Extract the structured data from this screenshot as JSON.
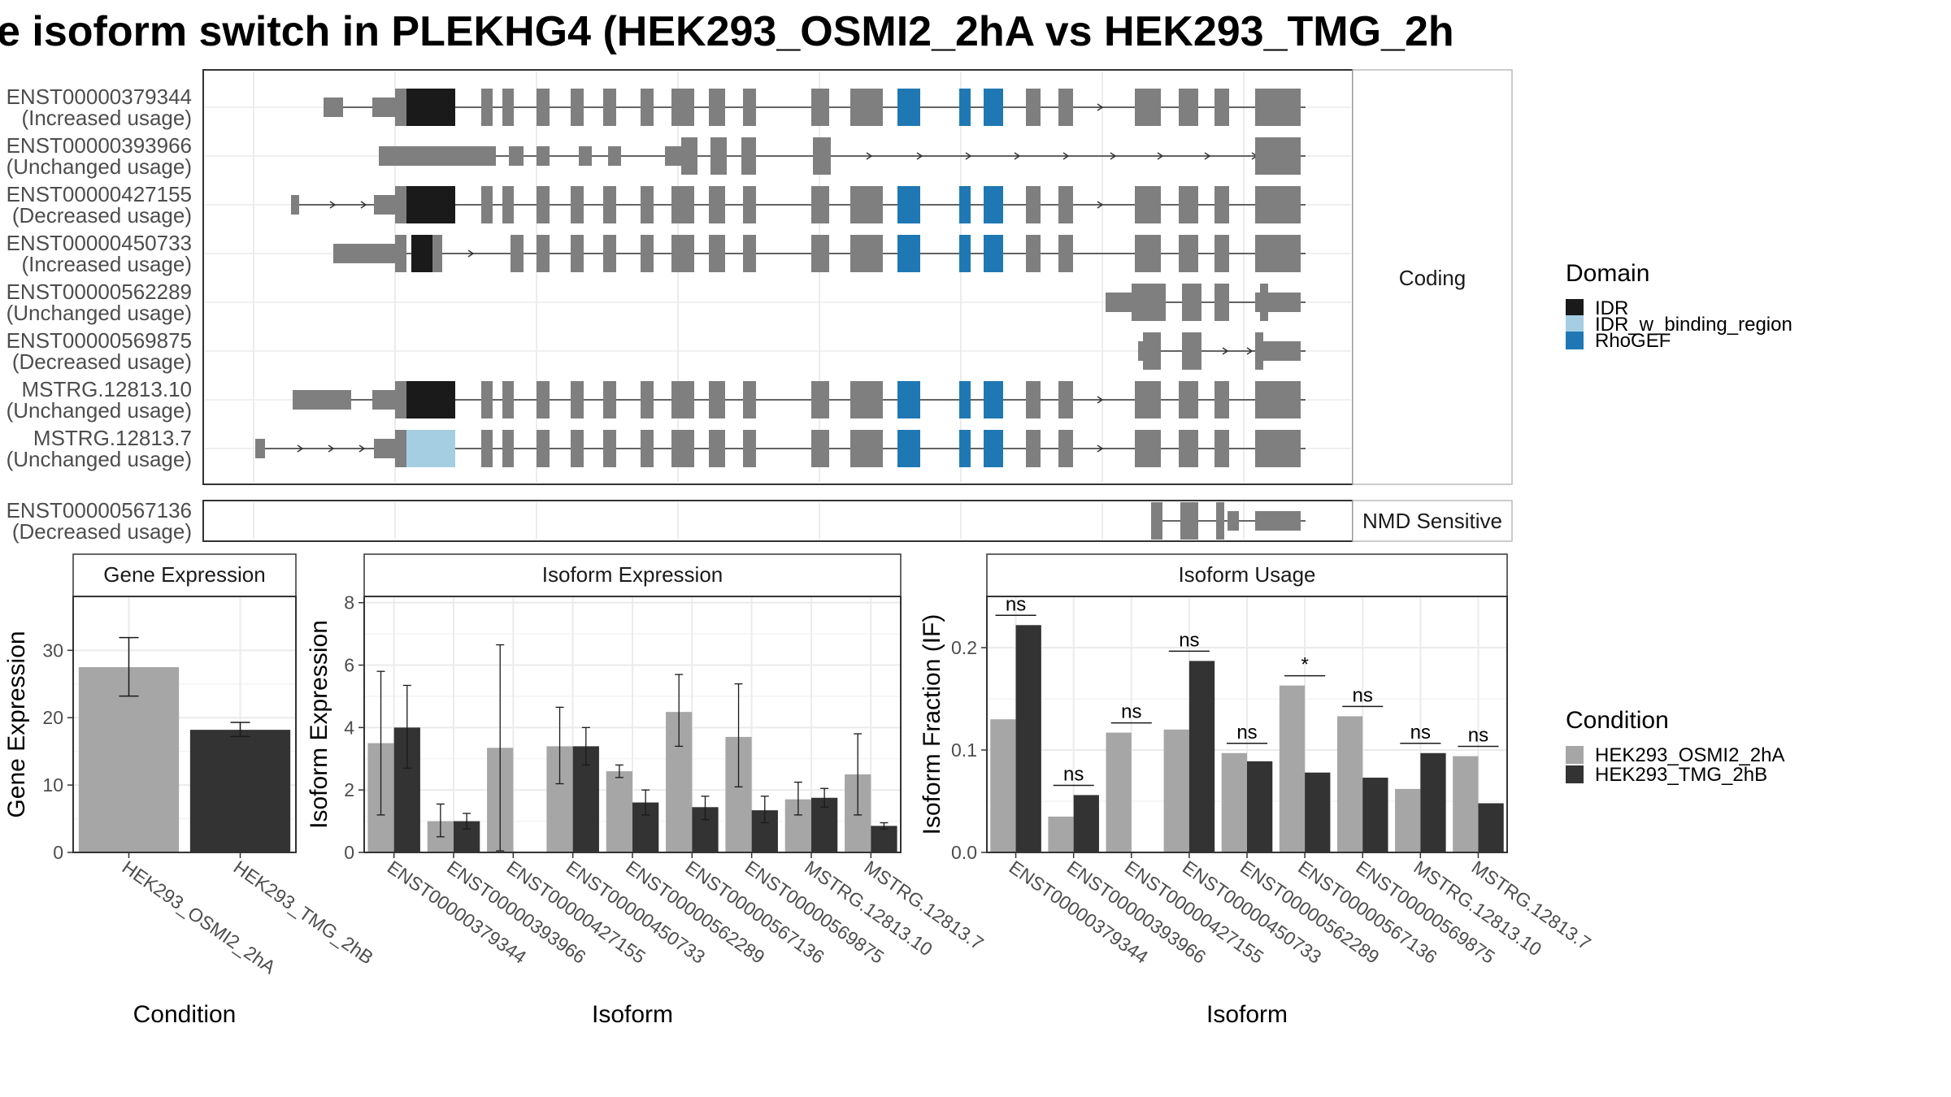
{
  "title": "e isoform switch in PLEKHG4 (HEK293_OSMI2_2hA vs HEK293_TMG_2h",
  "colors": {
    "exon": "#7f7f7f",
    "IDR": "#1a1a1a",
    "IDR_w_binding_region": "#a6cee3",
    "RhoGEF": "#1f78b4",
    "cond_A": "#a6a6a6",
    "cond_B": "#333333"
  },
  "structure": {
    "coding_panel_label": "Coding",
    "nmd_panel_label": "NMD Sensitive",
    "coding_isoforms": [
      {
        "id": "ENST00000379344",
        "usage": "(Increased usage)"
      },
      {
        "id": "ENST00000393966",
        "usage": "(Unchanged usage)"
      },
      {
        "id": "ENST00000427155",
        "usage": "(Decreased usage)"
      },
      {
        "id": "ENST00000450733",
        "usage": "(Increased usage)"
      },
      {
        "id": "ENST00000562289",
        "usage": "(Unchanged usage)"
      },
      {
        "id": "ENST00000569875",
        "usage": "(Decreased usage)"
      },
      {
        "id": "MSTRG.12813.10",
        "usage": "(Unchanged usage)"
      },
      {
        "id": "MSTRG.12813.7",
        "usage": "(Unchanged usage)"
      }
    ],
    "nmd_isoforms": [
      {
        "id": "ENST00000567136",
        "usage": "(Decreased usage)"
      }
    ]
  },
  "legend_domain": {
    "title": "Domain",
    "items": [
      {
        "label": "IDR",
        "color_key": "IDR"
      },
      {
        "label": "IDR_w_binding_region",
        "color_key": "IDR_w_binding_region"
      },
      {
        "label": "RhoGEF",
        "color_key": "RhoGEF"
      }
    ]
  },
  "legend_condition": {
    "title": "Condition",
    "items": [
      {
        "label": "HEK293_OSMI2_2hA",
        "color_key": "cond_A"
      },
      {
        "label": "HEK293_TMG_2hB",
        "color_key": "cond_B"
      }
    ]
  },
  "chart_data": [
    {
      "type": "bar",
      "panel_title": "Gene Expression",
      "xlabel": "Condition",
      "ylabel": "Gene Expression",
      "ylim": [
        0,
        38
      ],
      "yticks": [
        0,
        10,
        20,
        30
      ],
      "categories": [
        "HEK293_OSMI2_2hA",
        "HEK293_TMG_2hB"
      ],
      "values": [
        27.5,
        18.2
      ],
      "error": [
        [
          23.2,
          31.9
        ],
        [
          17.2,
          19.3
        ]
      ]
    },
    {
      "type": "bar",
      "panel_title": "Isoform Expression",
      "xlabel": "Isoform",
      "ylabel": "Isoform Expression",
      "ylim": [
        0,
        8.2
      ],
      "yticks": [
        0,
        2,
        4,
        6,
        8
      ],
      "categories": [
        "ENST00000379344",
        "ENST00000393966",
        "ENST00000427155",
        "ENST00000450733",
        "ENST00000562289",
        "ENST00000567136",
        "ENST00000569875",
        "MSTRG.12813.10",
        "MSTRG.12813.7"
      ],
      "series": [
        {
          "name": "HEK293_OSMI2_2hA",
          "values": [
            3.5,
            1.0,
            3.35,
            3.4,
            2.6,
            4.5,
            3.7,
            1.7,
            2.5
          ],
          "error": [
            [
              1.2,
              5.8
            ],
            [
              0.5,
              1.55
            ],
            [
              0.05,
              6.65
            ],
            [
              2.2,
              4.65
            ],
            [
              2.4,
              2.8
            ],
            [
              3.4,
              5.7
            ],
            [
              2.1,
              5.4
            ],
            [
              1.2,
              2.25
            ],
            [
              1.2,
              3.8
            ]
          ]
        },
        {
          "name": "HEK293_TMG_2hB",
          "values": [
            4.0,
            1.0,
            0.0,
            3.4,
            1.6,
            1.45,
            1.35,
            1.75,
            0.85
          ],
          "error": [
            [
              2.7,
              5.35
            ],
            [
              0.75,
              1.25
            ],
            [
              0.0,
              0.0
            ],
            [
              2.8,
              4.0
            ],
            [
              1.2,
              2.0
            ],
            [
              1.05,
              1.8
            ],
            [
              0.95,
              1.8
            ],
            [
              1.45,
              2.05
            ],
            [
              0.75,
              0.95
            ]
          ]
        }
      ]
    },
    {
      "type": "bar",
      "panel_title": "Isoform Usage",
      "xlabel": "Isoform",
      "ylabel": "Isoform Fraction (IF)",
      "ylim": [
        0,
        0.25
      ],
      "yticks": [
        0.0,
        0.1,
        0.2
      ],
      "ytick_labels": [
        "0.0",
        "0.1",
        "0.2"
      ],
      "categories": [
        "ENST00000379344",
        "ENST00000393966",
        "ENST00000427155",
        "ENST00000450733",
        "ENST00000562289",
        "ENST00000567136",
        "ENST00000569875",
        "MSTRG.12813.10",
        "MSTRG.12813.7"
      ],
      "series": [
        {
          "name": "HEK293_OSMI2_2hA",
          "values": [
            0.13,
            0.035,
            0.117,
            0.12,
            0.097,
            0.163,
            0.133,
            0.062,
            0.094
          ]
        },
        {
          "name": "HEK293_TMG_2hB",
          "values": [
            0.222,
            0.056,
            0.0,
            0.187,
            0.089,
            0.078,
            0.073,
            0.097,
            0.048
          ]
        }
      ],
      "significance": [
        "ns",
        "ns",
        "ns",
        "ns",
        "ns",
        "*",
        "ns",
        "ns",
        "ns"
      ]
    }
  ]
}
